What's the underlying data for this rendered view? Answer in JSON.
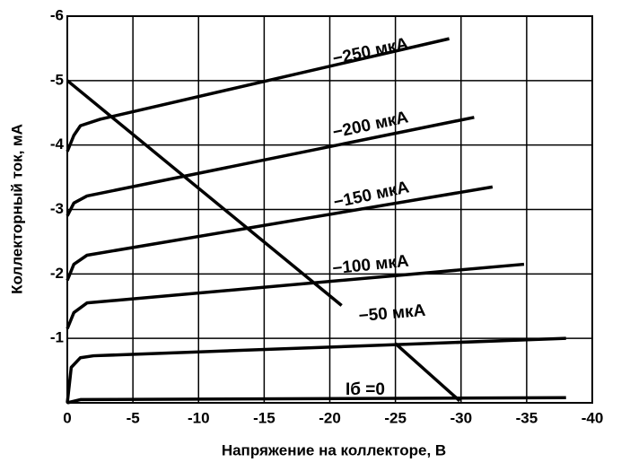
{
  "chart_data": {
    "type": "line",
    "x_label": "Напряжение на коллекторе, В",
    "y_label": "Коллекторный ток, мА",
    "xlim": [
      0,
      -40
    ],
    "ylim": [
      0,
      -6
    ],
    "xticks": [
      0,
      -5,
      -10,
      -15,
      -20,
      -25,
      -30,
      -35,
      -40
    ],
    "yticks": [
      -1,
      -2,
      -3,
      -4,
      -5,
      -6
    ],
    "grid": true,
    "color": "#000000",
    "series": [
      {
        "name": "Iб =0",
        "x": [
          0,
          -1,
          -38
        ],
        "values": [
          0,
          -0.05,
          -0.08
        ]
      },
      {
        "name": "−50 мкА",
        "x": [
          0,
          -0.3,
          -1,
          -2,
          -38
        ],
        "values": [
          0,
          -0.55,
          -0.7,
          -0.73,
          -1.0
        ]
      },
      {
        "name": "−100 мкА",
        "x": [
          0,
          -0.5,
          -1.5,
          -34.8
        ],
        "values": [
          -1.15,
          -1.4,
          -1.55,
          -2.15
        ]
      },
      {
        "name": "−150 мкА",
        "x": [
          0,
          -0.5,
          -1.5,
          -32.4
        ],
        "values": [
          -1.9,
          -2.15,
          -2.29,
          -3.35
        ]
      },
      {
        "name": "−200 мкА",
        "x": [
          0,
          -0.5,
          -1.5,
          -31
        ],
        "values": [
          -2.9,
          -3.1,
          -3.21,
          -4.43
        ]
      },
      {
        "name": "−250 мкА",
        "x": [
          0,
          -0.5,
          -1,
          -2.5,
          -29.1
        ],
        "values": [
          -3.9,
          -4.15,
          -4.3,
          -4.4,
          -5.65
        ]
      }
    ],
    "load_lines": [
      {
        "x": [
          0,
          -20.9
        ],
        "values": [
          -5,
          -1.51
        ]
      },
      {
        "x": [
          -25,
          -29.9
        ],
        "values": [
          -0.92,
          -0.03
        ]
      }
    ]
  }
}
